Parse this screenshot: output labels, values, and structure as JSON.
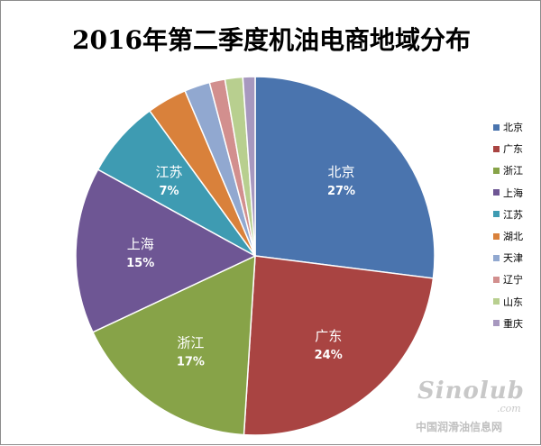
{
  "chart_data": {
    "type": "pie",
    "title": "2016年第二季度机油电商地域分布",
    "slices": [
      {
        "name": "北京",
        "value": 27,
        "label": "27%",
        "color": "#4a74ae"
      },
      {
        "name": "广东",
        "value": 24,
        "label": "24%",
        "color": "#a94442"
      },
      {
        "name": "浙江",
        "value": 17,
        "label": "17%",
        "color": "#87a348"
      },
      {
        "name": "上海",
        "value": 15,
        "label": "15%",
        "color": "#6e5694"
      },
      {
        "name": "江苏",
        "value": 7,
        "label": "7%",
        "color": "#3e9bb2"
      },
      {
        "name": "湖北",
        "value": 3.6,
        "label": "",
        "color": "#d9813b"
      },
      {
        "name": "天津",
        "value": 2.3,
        "label": "",
        "color": "#91a8d0"
      },
      {
        "name": "辽宁",
        "value": 1.4,
        "label": "",
        "color": "#d28f8e"
      },
      {
        "name": "山东",
        "value": 1.6,
        "label": "",
        "color": "#b8cf8f"
      },
      {
        "name": "重庆",
        "value": 1.1,
        "label": "",
        "color": "#a798bf"
      }
    ],
    "legend_position": "right"
  },
  "watermark": {
    "logo": "Sinolub",
    "domain": ".com",
    "text": "中国润滑油信息网"
  }
}
